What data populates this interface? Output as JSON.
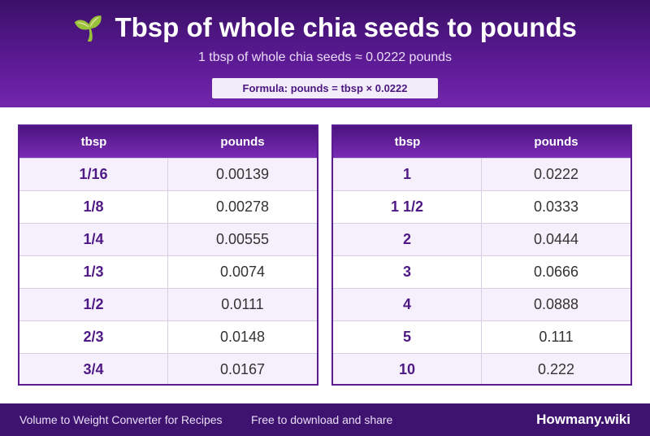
{
  "header": {
    "icon": "sprout-icon",
    "icon_glyph": "🌱",
    "title": "Tbsp of whole chia seeds to pounds",
    "subtitle": "1 tbsp of whole chia seeds ≈ 0.0222 pounds",
    "formula": "Formula: pounds = tbsp × 0.0222"
  },
  "tables": [
    {
      "headers": [
        "tbsp",
        "pounds"
      ],
      "rows": [
        [
          "1/16",
          "0.00139"
        ],
        [
          "1/8",
          "0.00278"
        ],
        [
          "1/4",
          "0.00555"
        ],
        [
          "1/3",
          "0.0074"
        ],
        [
          "1/2",
          "0.0111"
        ],
        [
          "2/3",
          "0.0148"
        ],
        [
          "3/4",
          "0.0167"
        ]
      ]
    },
    {
      "headers": [
        "tbsp",
        "pounds"
      ],
      "rows": [
        [
          "1",
          "0.0222"
        ],
        [
          "1 1/2",
          "0.0333"
        ],
        [
          "2",
          "0.0444"
        ],
        [
          "3",
          "0.0666"
        ],
        [
          "4",
          "0.0888"
        ],
        [
          "5",
          "0.111"
        ],
        [
          "10",
          "0.222"
        ]
      ]
    }
  ],
  "footer": {
    "left": "Volume to Weight Converter for Recipes",
    "middle": "Free to download and share",
    "brand": "Howmany.wiki"
  },
  "colors": {
    "header_dark": "#3a1068",
    "header_light": "#7226ad",
    "accent_text": "#4f1985",
    "footer_bg": "#3e1370"
  }
}
